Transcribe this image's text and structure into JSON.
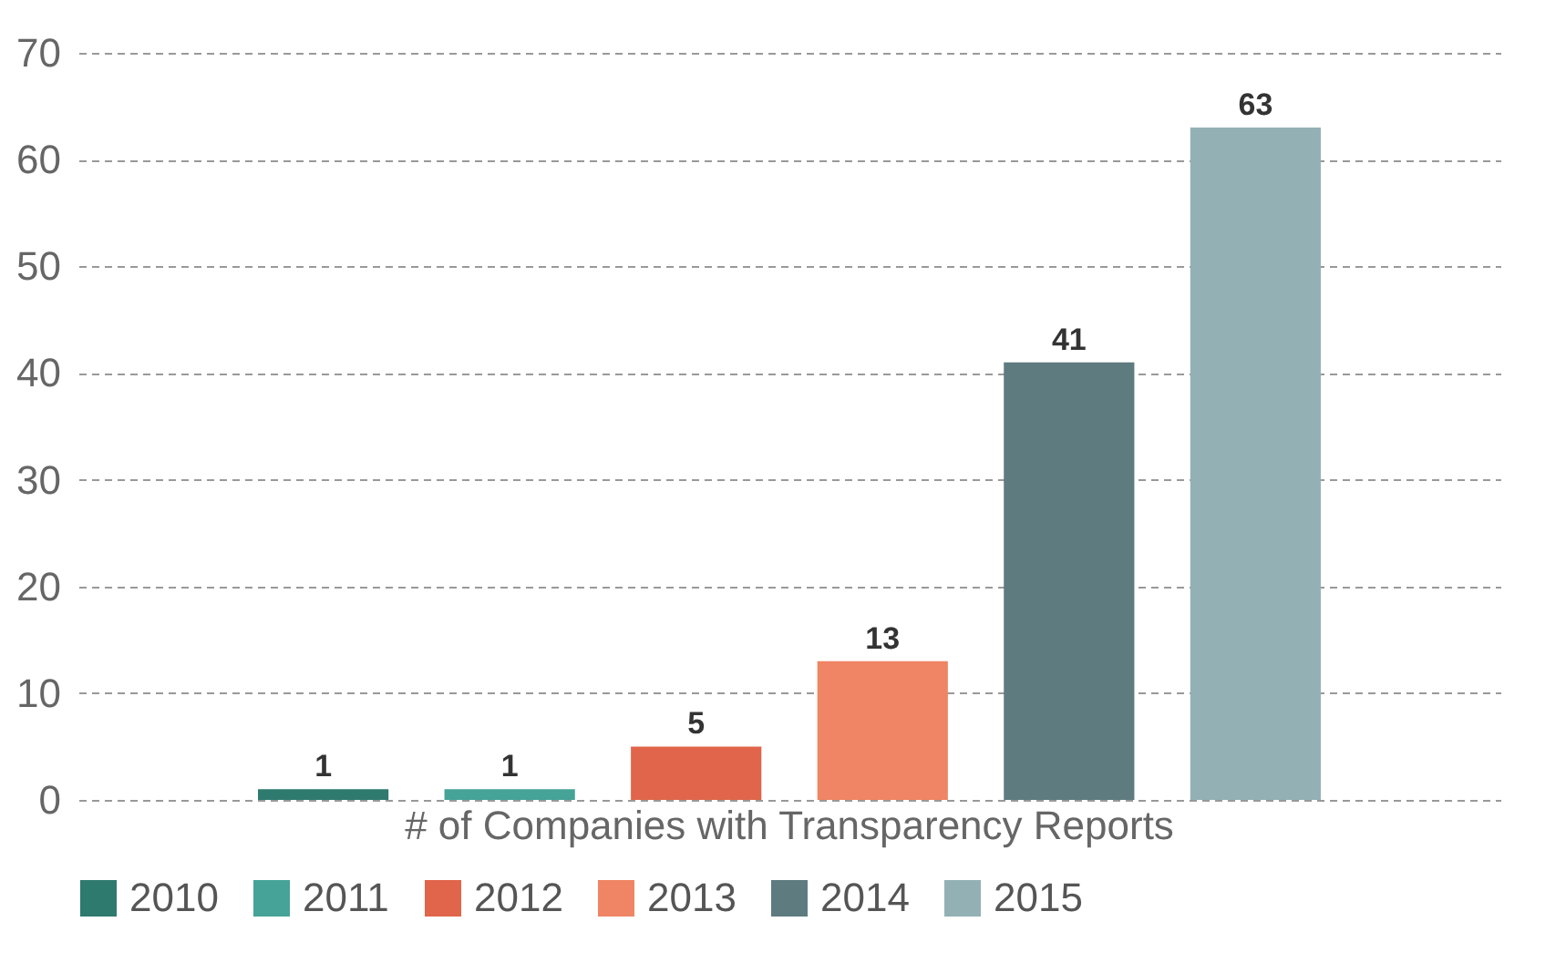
{
  "chart_data": {
    "type": "bar",
    "categories": [
      "# of Companies with Transparency Reports"
    ],
    "series": [
      {
        "name": "2010",
        "color": "#2e7a6e",
        "values": [
          1
        ]
      },
      {
        "name": "2011",
        "color": "#45a398",
        "values": [
          1
        ]
      },
      {
        "name": "2012",
        "color": "#e0654a",
        "values": [
          5
        ]
      },
      {
        "name": "2013",
        "color": "#ef8564",
        "values": [
          13
        ]
      },
      {
        "name": "2014",
        "color": "#5e7b80",
        "values": [
          41
        ]
      },
      {
        "name": "2015",
        "color": "#93b1b5",
        "values": [
          63
        ]
      }
    ],
    "ylim": [
      0,
      70
    ],
    "yticks": [
      0,
      10,
      20,
      30,
      40,
      50,
      60,
      70
    ],
    "grid": "y",
    "data_labels": true,
    "legend": "bottom"
  }
}
